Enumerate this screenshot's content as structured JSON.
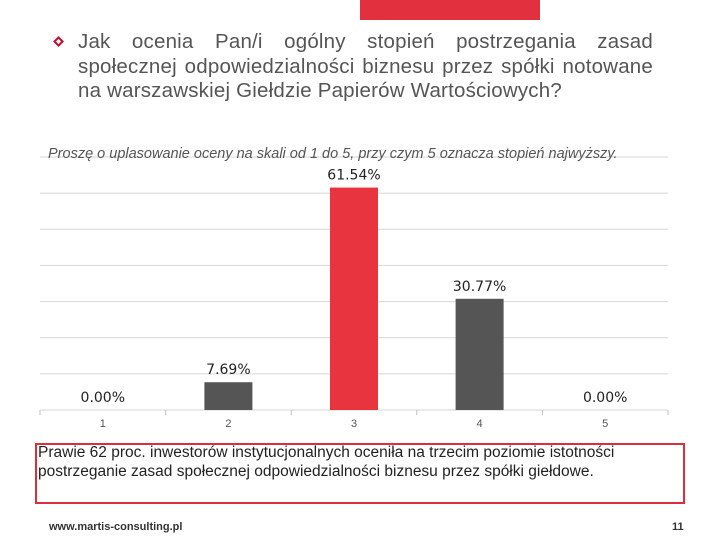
{
  "slide": {
    "question": "Jak ocenia Pan/i ogólny stopień postrzegania zasad społecznej odpowiedzialności biznesu przez spółki notowane na warszawskiej Giełdzie Papierów Wartościowych?",
    "instruction": "Proszę o uplasowanie oceny na skali od 1 do 5, przy czym 5 oznacza stopień najwyższy.",
    "note": "Prawie 62 proc. inwestorów instytucjonalnych oceniła na trzecim poziomie istotności postrzeganie zasad społecznej odpowiedzialności biznesu przez spółki giełdowe.",
    "footer_url": "www.martis-consulting.pl",
    "page_number": "11"
  },
  "colors": {
    "accent": "#e2303e",
    "bar_red": "#e8343f",
    "bar_gray": "#555555",
    "grid": "#d6d6d6"
  },
  "icons": {
    "bullet": "diamond-bullet-icon"
  },
  "chart_data": {
    "type": "bar",
    "categories": [
      "1",
      "2",
      "3",
      "4",
      "5"
    ],
    "values": [
      0.0,
      7.69,
      61.54,
      30.77,
      0.0
    ],
    "data_labels": [
      "0.00%",
      "7.69%",
      "61.54%",
      "30.77%",
      "0.00%"
    ],
    "bar_colors": [
      "#555555",
      "#555555",
      "#e8343f",
      "#555555",
      "#555555"
    ],
    "ylim": [
      0,
      70
    ],
    "title": "",
    "xlabel": "",
    "ylabel": "",
    "grid": true,
    "legend": "none"
  }
}
